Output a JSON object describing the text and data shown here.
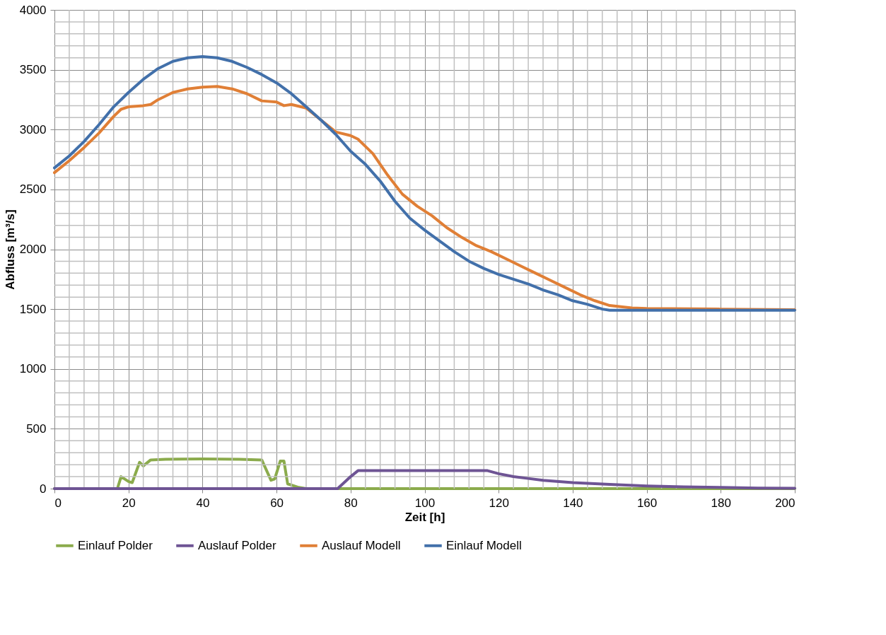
{
  "chart_data": {
    "type": "line",
    "xlabel": "Zeit [h]",
    "ylabel": "Abfluss [m³/s]",
    "xlim": [
      0,
      200
    ],
    "ylim": [
      0,
      4000
    ],
    "xticks": [
      0,
      20,
      40,
      60,
      80,
      100,
      120,
      140,
      160,
      180,
      200
    ],
    "yticks": [
      0,
      500,
      1000,
      1500,
      2000,
      2500,
      3000,
      3500,
      4000
    ],
    "grid": true,
    "legend": "bottom",
    "marker": "none",
    "line_style": "solid",
    "series": [
      {
        "name": "Einlauf Polder",
        "color": "#8bab4c",
        "x": [
          0,
          17,
          18,
          20,
          21,
          23,
          24,
          26,
          30,
          40,
          50,
          56,
          58.5,
          59.5,
          61,
          62,
          63,
          66,
          68,
          200
        ],
        "values": [
          0,
          0,
          100,
          60,
          50,
          220,
          190,
          240,
          245,
          248,
          245,
          240,
          70,
          80,
          230,
          230,
          40,
          10,
          0,
          0
        ]
      },
      {
        "name": "Auslauf Polder",
        "color": "#6e5494",
        "x": [
          0,
          76.5,
          80,
          82,
          117,
          120,
          124,
          128,
          132,
          140,
          150,
          160,
          170,
          180,
          190,
          200
        ],
        "values": [
          0,
          0,
          100,
          150,
          150,
          125,
          100,
          85,
          70,
          50,
          35,
          22,
          15,
          10,
          5,
          3
        ]
      },
      {
        "name": "Auslauf Modell",
        "color": "#e07f36",
        "x": [
          0,
          4,
          8,
          12,
          16,
          18,
          20,
          24,
          26,
          28,
          32,
          36,
          40,
          44,
          48,
          52,
          56,
          60,
          62,
          64,
          68,
          72,
          76,
          80,
          82,
          86,
          90,
          94,
          98,
          102,
          106,
          110,
          114,
          118,
          122,
          126,
          130,
          134,
          138,
          142,
          146,
          150,
          156,
          160,
          180,
          200
        ],
        "values": [
          2640,
          2740,
          2850,
          2970,
          3110,
          3170,
          3190,
          3200,
          3210,
          3250,
          3310,
          3340,
          3355,
          3360,
          3340,
          3300,
          3240,
          3230,
          3200,
          3210,
          3180,
          3080,
          2980,
          2950,
          2920,
          2800,
          2620,
          2460,
          2360,
          2280,
          2180,
          2100,
          2030,
          1980,
          1920,
          1860,
          1800,
          1740,
          1680,
          1620,
          1570,
          1530,
          1510,
          1505,
          1500,
          1495
        ]
      },
      {
        "name": "Einlauf Modell",
        "color": "#4270aa",
        "x": [
          0,
          4,
          8,
          12,
          16,
          20,
          24,
          28,
          32,
          36,
          40,
          44,
          48,
          52,
          56,
          60,
          64,
          68,
          72,
          76,
          80,
          84,
          88,
          92,
          96,
          100,
          104,
          108,
          112,
          116,
          120,
          124,
          128,
          132,
          136,
          140,
          144,
          148,
          150,
          200
        ],
        "values": [
          2680,
          2780,
          2900,
          3040,
          3190,
          3310,
          3420,
          3510,
          3570,
          3600,
          3610,
          3600,
          3570,
          3520,
          3460,
          3390,
          3300,
          3190,
          3080,
          2960,
          2820,
          2710,
          2570,
          2400,
          2260,
          2160,
          2070,
          1980,
          1900,
          1840,
          1790,
          1750,
          1710,
          1660,
          1620,
          1570,
          1540,
          1500,
          1490,
          1490
        ]
      }
    ]
  }
}
